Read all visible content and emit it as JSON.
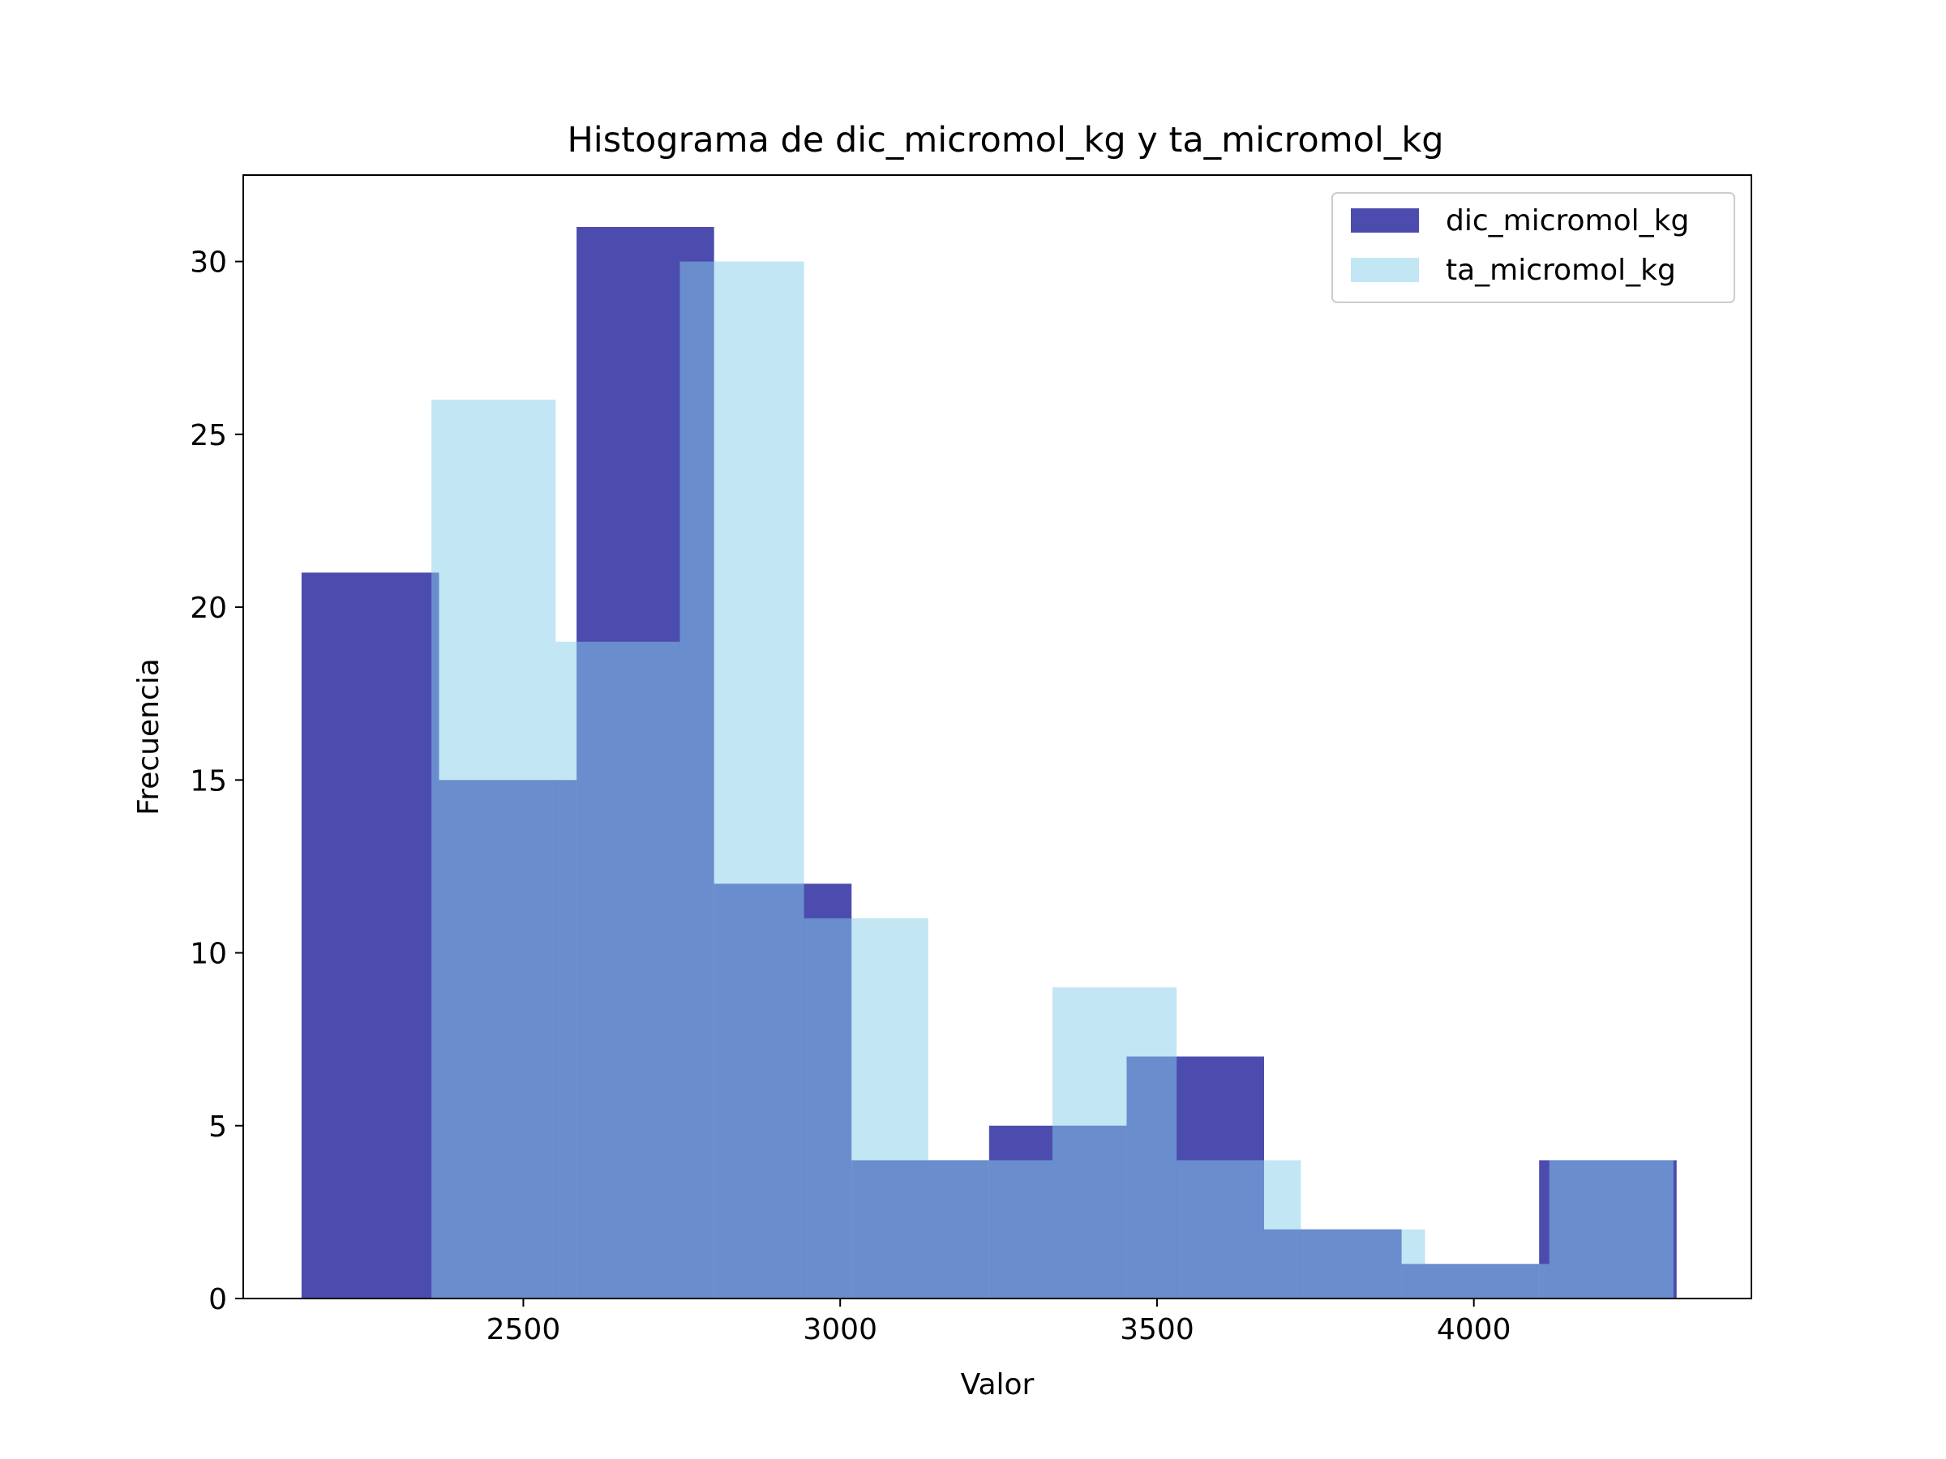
{
  "chart_data": {
    "type": "bar",
    "title": "Histograma de dic_micromol_kg y ta_micromol_kg",
    "xlabel": "Valor",
    "ylabel": "Frecuencia",
    "xlim": [
      2058,
      4438
    ],
    "ylim": [
      0,
      32.5
    ],
    "xticks": [
      2500,
      3000,
      3500,
      4000
    ],
    "yticks": [
      0,
      5,
      10,
      15,
      20,
      25,
      30
    ],
    "grid": false,
    "legend_position": "top-right",
    "series": [
      {
        "name": "dic_micromol_kg",
        "color": "#00008b",
        "opacity": 0.7,
        "bin_edges": [
          2150,
          2367,
          2584,
          2801,
          3018,
          3235,
          3452,
          3669,
          3886,
          4103,
          4320
        ],
        "values": [
          21,
          15,
          31,
          12,
          4,
          5,
          7,
          2,
          1,
          4
        ]
      },
      {
        "name": "ta_micromol_kg",
        "color": "#87ceeb",
        "opacity": 0.5,
        "bin_edges": [
          2355,
          2551,
          2747,
          2943,
          3139,
          3335,
          3531,
          3727,
          3923,
          4119,
          4315
        ],
        "values": [
          26,
          19,
          30,
          11,
          4,
          9,
          4,
          2,
          1,
          4
        ]
      }
    ]
  }
}
